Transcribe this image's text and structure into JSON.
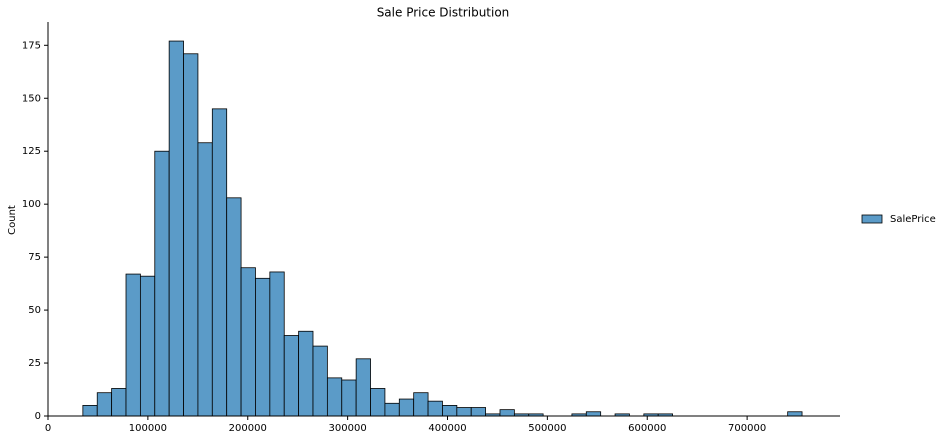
{
  "chart_data": {
    "type": "histogram",
    "title": "Sale Price Distribution",
    "y_label": "Count",
    "series": [
      {
        "name": "SalePrice",
        "color": "#5b9bc8",
        "values": [
          5,
          11,
          13,
          67,
          66,
          125,
          177,
          171,
          129,
          145,
          103,
          70,
          65,
          68,
          38,
          40,
          33,
          18,
          17,
          27,
          13,
          6,
          8,
          11,
          7,
          5,
          4,
          4,
          1,
          3,
          1,
          1,
          0,
          0,
          1,
          2,
          0,
          1,
          0,
          1,
          1,
          0,
          0,
          0,
          0,
          0,
          0,
          0,
          0,
          2
        ]
      }
    ],
    "bins": [
      34900,
      49302,
      63704,
      78106,
      92508,
      106910,
      121312,
      135714,
      150116,
      164518,
      178920,
      193322,
      207724,
      222126,
      236528,
      250930,
      265332,
      279734,
      294136,
      308538,
      322940,
      337342,
      351744,
      366146,
      380548,
      394950,
      409352,
      423754,
      438156,
      452558,
      466960,
      481362,
      495764,
      510166,
      524568,
      538970,
      553372,
      567774,
      582176,
      596578,
      610980,
      625382,
      639784,
      654186,
      668588,
      682990,
      697392,
      711794,
      726196,
      740598,
      755000
    ],
    "xlim": [
      0,
      793000
    ],
    "ylim": [
      0,
      186
    ],
    "xticks": [
      0,
      100000,
      200000,
      300000,
      400000,
      500000,
      600000,
      700000
    ],
    "yticks": [
      0,
      25,
      50,
      75,
      100,
      125,
      150,
      175
    ],
    "legend": "right"
  }
}
